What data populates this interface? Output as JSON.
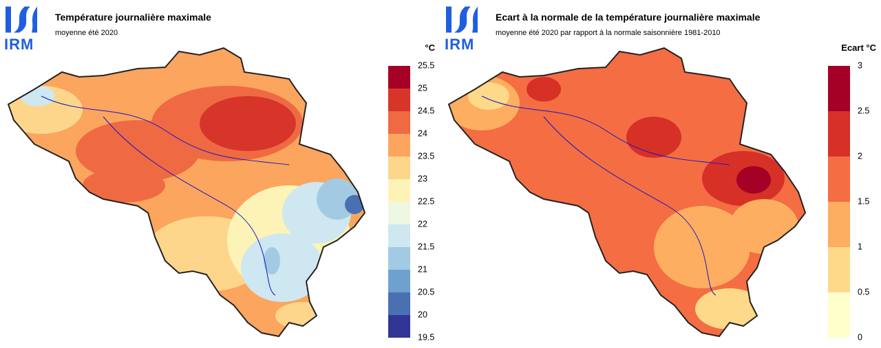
{
  "panels": [
    {
      "logo": "IRM",
      "title": "Température journalière maximale",
      "subtitle": "moyenne été 2020",
      "legend": {
        "unit": "°C",
        "ticks": [
          19.5,
          20,
          20.5,
          21,
          21.5,
          22,
          22.5,
          23,
          23.5,
          24,
          24.5,
          25,
          25.5
        ],
        "colors": [
          "#313695",
          "#4a70b4",
          "#6fa1d0",
          "#a2cbe3",
          "#cfe7f0",
          "#eef7e2",
          "#fef3b6",
          "#fdd68b",
          "#fba55e",
          "#ef6a43",
          "#d7352a",
          "#a50026"
        ]
      }
    },
    {
      "logo": "IRM",
      "title": "Ecart à la normale de la température journalière maximale",
      "subtitle": "moyenne été 2020 par rapport à la normale saisonnière 1981-2010",
      "legend": {
        "unit": "Ecart °C",
        "ticks": [
          0,
          0.5,
          1,
          1.5,
          2,
          2.5,
          3
        ],
        "colors": [
          "#ffffcc",
          "#fed98a",
          "#fdae61",
          "#f46d43",
          "#d73027",
          "#a50026"
        ]
      }
    }
  ]
}
